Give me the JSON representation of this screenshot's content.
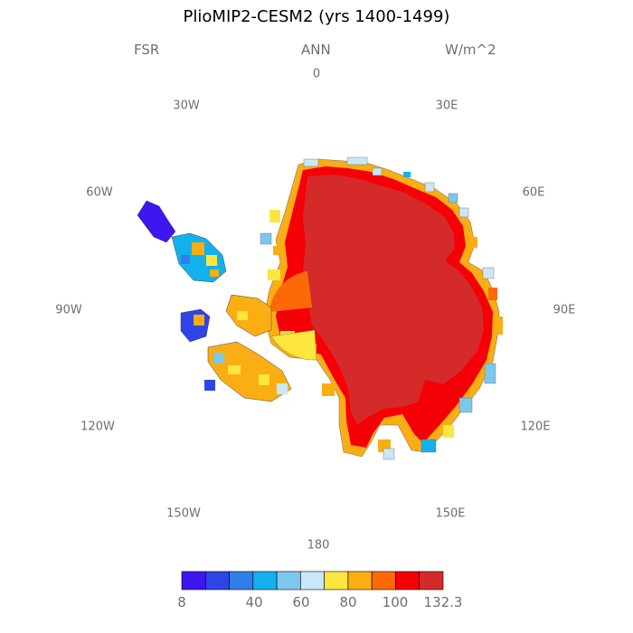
{
  "title": "PlioMIP2-CESM2 (yrs 1400-1499)",
  "variable": "FSR",
  "season": "ANN",
  "units": "W/m^2",
  "longitude_labels": {
    "lon_0": "0",
    "lon_30e": "30E",
    "lon_60e": "60E",
    "lon_90e": "90E",
    "lon_120e": "120E",
    "lon_150e": "150E",
    "lon_180": "180",
    "lon_150w": "150W",
    "lon_120w": "120W",
    "lon_90w": "90W",
    "lon_60w": "60W",
    "lon_30w": "30W"
  },
  "colorbar": {
    "colors": [
      "#3f15f0",
      "#2d45e6",
      "#2f7fe8",
      "#13b0ee",
      "#7cc8ec",
      "#c9e7f7",
      "#fde63e",
      "#fbad14",
      "#fb6a06",
      "#f40006",
      "#d52a2a"
    ],
    "labels": {
      "l0": "8",
      "l1": "40",
      "l2": "60",
      "l3": "80",
      "l4": "100",
      "l5": "132.3"
    }
  },
  "map": {
    "projection": "south polar stereographic",
    "field": "annual mean reflected shortwave at surface",
    "land_fill_max_color": "#d52a2a",
    "coast_ring_colors": [
      "#f40006",
      "#fb6a06",
      "#fbad14",
      "#fde63e",
      "#c9e7f7"
    ],
    "peninsula_colors": [
      "#3f15f0",
      "#2d45e6",
      "#2f7fe8",
      "#13b0ee",
      "#7cc8ec",
      "#fbad14",
      "#fde63e"
    ]
  }
}
